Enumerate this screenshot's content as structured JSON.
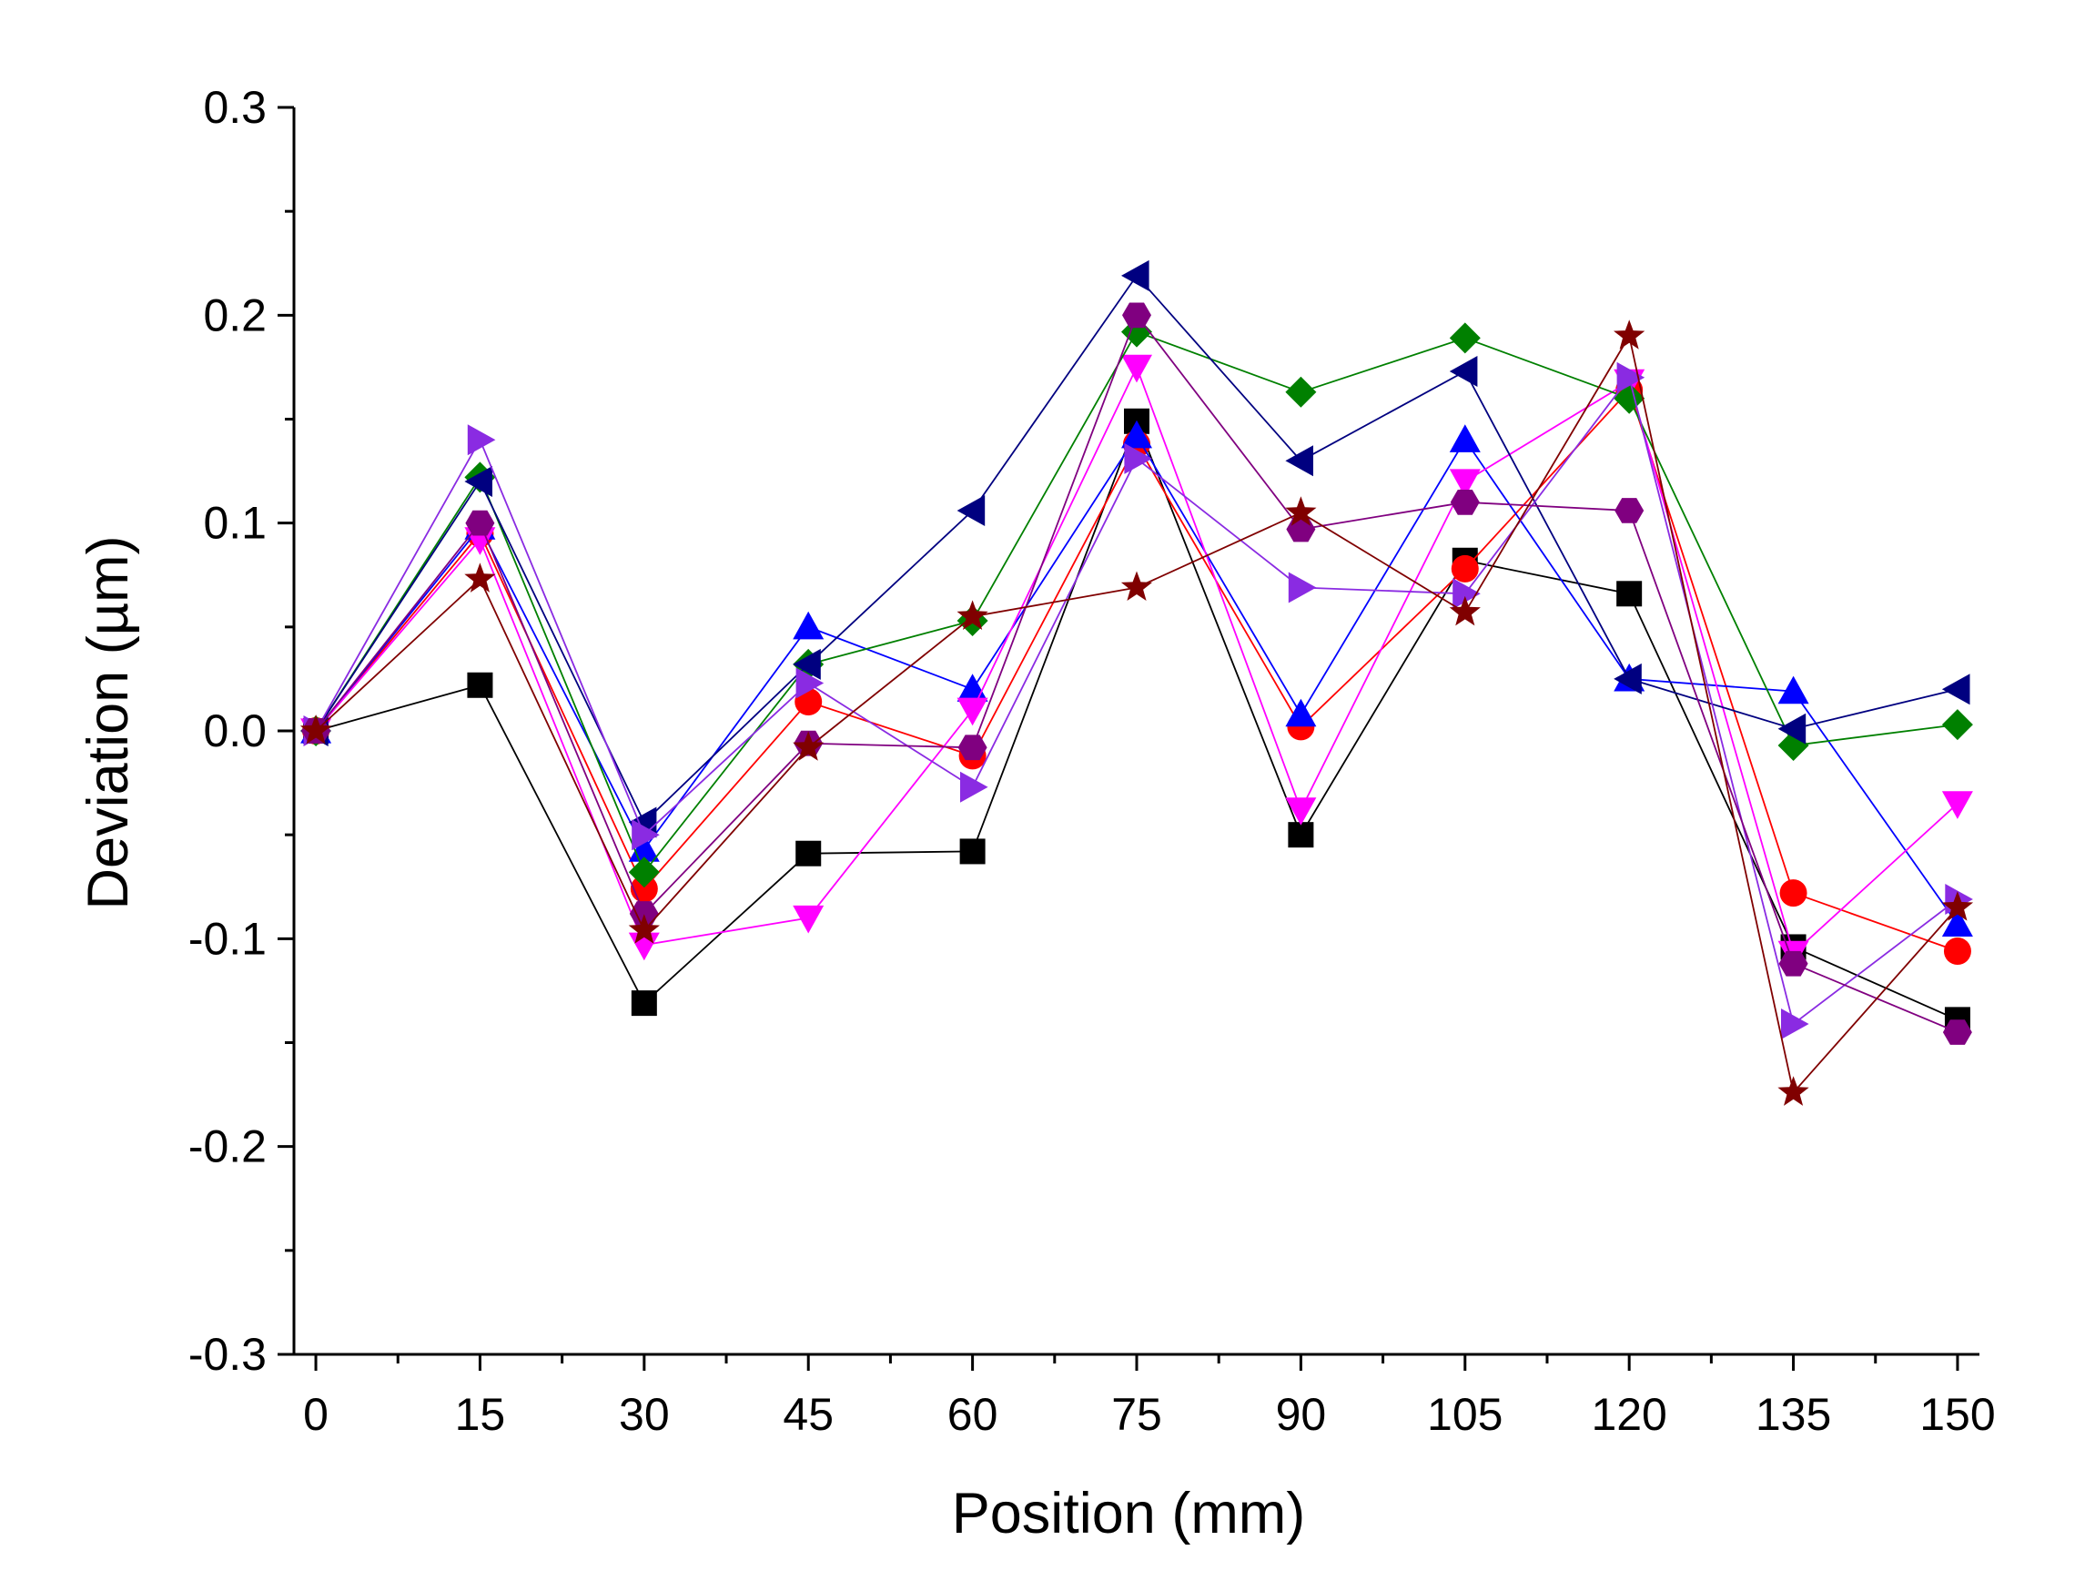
{
  "chart_data": {
    "type": "line",
    "xlabel": "Position (mm)",
    "ylabel": "Deviation (µm)",
    "xlim": [
      -2,
      152
    ],
    "ylim": [
      -0.3,
      0.3
    ],
    "x": [
      0,
      15,
      30,
      45,
      60,
      75,
      90,
      105,
      120,
      135,
      150
    ],
    "x_ticks": [
      "0",
      "15",
      "30",
      "45",
      "60",
      "75",
      "90",
      "105",
      "120",
      "135",
      "150"
    ],
    "y_ticks": [
      "-0.3",
      "-0.2",
      "-0.1",
      "0.0",
      "0.1",
      "0.2",
      "0.3"
    ],
    "y_tick_values": [
      -0.3,
      -0.2,
      -0.1,
      0.0,
      0.1,
      0.2,
      0.3
    ],
    "grid": false,
    "legend": "none",
    "series": [
      {
        "color": "#000000",
        "marker": "square",
        "values": [
          0.0,
          0.022,
          -0.131,
          -0.059,
          -0.058,
          0.149,
          -0.05,
          0.082,
          0.066,
          -0.104,
          -0.139
        ]
      },
      {
        "color": "#ff0000",
        "marker": "circle",
        "values": [
          0.0,
          0.095,
          -0.076,
          0.014,
          -0.012,
          0.138,
          0.002,
          0.078,
          0.164,
          -0.078,
          -0.106
        ]
      },
      {
        "color": "#0000ff",
        "marker": "triangle-up",
        "values": [
          0.0,
          0.098,
          -0.057,
          0.05,
          0.02,
          0.142,
          0.008,
          0.14,
          0.025,
          0.019,
          -0.093
        ]
      },
      {
        "color": "#ff00ff",
        "marker": "triangle-down",
        "values": [
          0.0,
          0.092,
          -0.103,
          -0.09,
          0.01,
          0.175,
          -0.038,
          0.12,
          0.168,
          -0.107,
          -0.035
        ]
      },
      {
        "color": "#008000",
        "marker": "diamond",
        "values": [
          0.0,
          0.122,
          -0.068,
          0.032,
          0.053,
          0.192,
          0.163,
          0.189,
          0.16,
          -0.007,
          0.003
        ]
      },
      {
        "color": "#000080",
        "marker": "triangle-left",
        "values": [
          0.0,
          0.12,
          -0.044,
          0.032,
          0.106,
          0.219,
          0.13,
          0.173,
          0.025,
          0.001,
          0.02
        ]
      },
      {
        "color": "#8a2be2",
        "marker": "triangle-right",
        "values": [
          0.0,
          0.14,
          -0.05,
          0.023,
          -0.027,
          0.131,
          0.069,
          0.066,
          0.17,
          -0.141,
          -0.081
        ]
      },
      {
        "color": "#800080",
        "marker": "hexagon",
        "values": [
          0.0,
          0.1,
          -0.088,
          -0.006,
          -0.008,
          0.2,
          0.097,
          0.11,
          0.106,
          -0.112,
          -0.145
        ]
      },
      {
        "color": "#800000",
        "marker": "star",
        "values": [
          0.0,
          0.073,
          -0.096,
          -0.008,
          0.055,
          0.069,
          0.105,
          0.057,
          0.19,
          -0.174,
          -0.085
        ]
      }
    ]
  }
}
